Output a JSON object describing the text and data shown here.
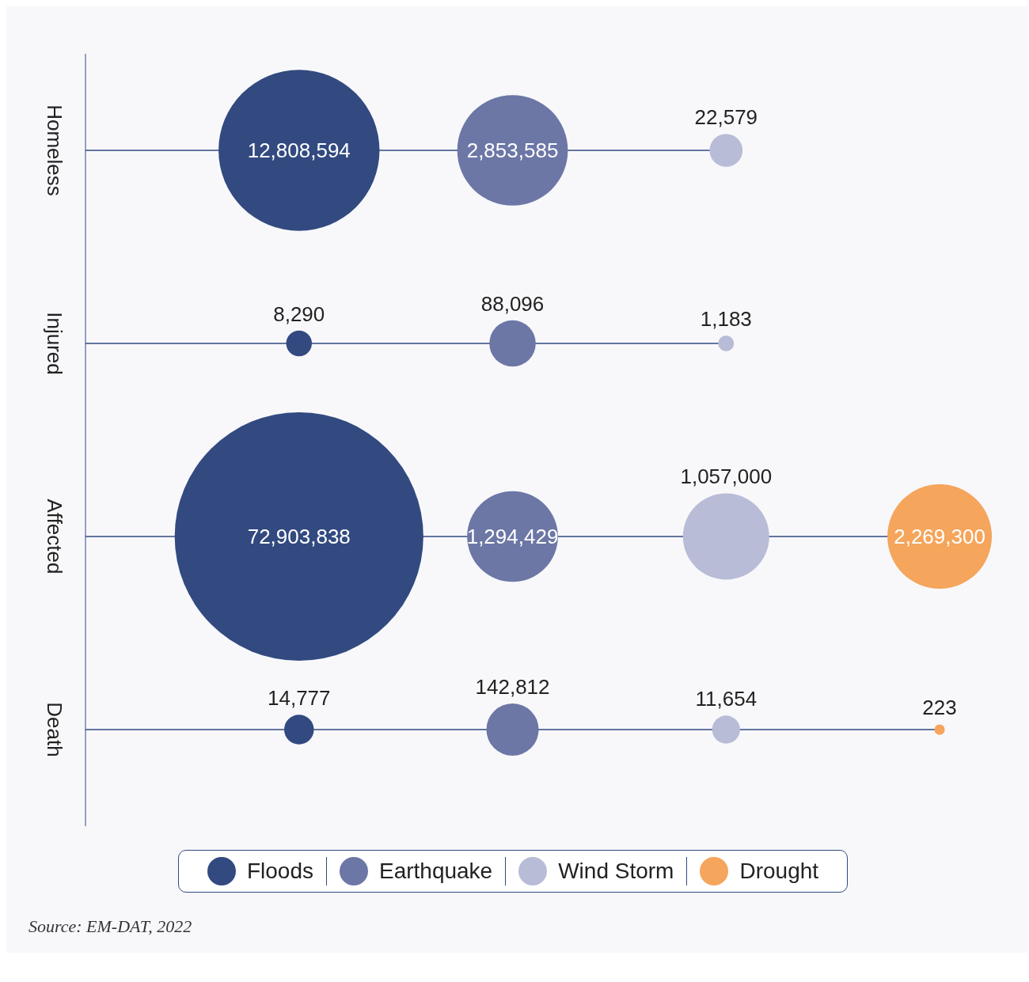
{
  "chart_data": {
    "type": "other",
    "categories": [
      "Homeless",
      "Injured",
      "Affected",
      "Death"
    ],
    "series": [
      {
        "name": "Floods",
        "color": "#324a80",
        "values": [
          12808594,
          8290,
          72903838,
          14777
        ],
        "value_labels": [
          "12,808,594",
          "8,290",
          "72,903,838",
          "14,777"
        ]
      },
      {
        "name": "Earthquake",
        "color": "#6c77a6",
        "values": [
          2853585,
          88096,
          1294429,
          142812
        ],
        "value_labels": [
          "2,853,585",
          "88,096",
          "1,294,429",
          "142,812"
        ]
      },
      {
        "name": "Wind Storm",
        "color": "#b8bcd6",
        "values": [
          22579,
          1183,
          1057000,
          11654
        ],
        "value_labels": [
          "22,579",
          "1,183",
          "1,057,000",
          "11,654"
        ]
      },
      {
        "name": "Drought",
        "color": "#f5a55c",
        "values": [
          null,
          null,
          2269300,
          223
        ],
        "value_labels": [
          null,
          null,
          "2,269,300",
          "223"
        ]
      }
    ],
    "legend": "bottom",
    "annotations": [
      "Source: EM-DAT, 2022"
    ]
  }
}
